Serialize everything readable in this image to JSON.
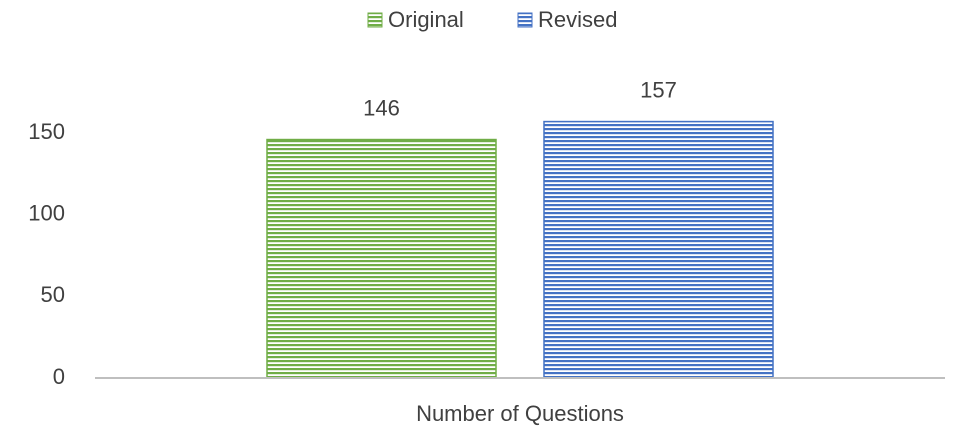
{
  "chart_data": {
    "type": "bar",
    "categories": [
      "Number of Questions"
    ],
    "series": [
      {
        "name": "Original",
        "color": "#70ad47",
        "values": [
          146
        ]
      },
      {
        "name": "Revised",
        "color": "#4472c4",
        "values": [
          157
        ]
      }
    ],
    "ylim": [
      0,
      180
    ],
    "yticks": [
      0,
      50,
      100,
      150
    ],
    "grid": false,
    "legend": "top",
    "data_labels": true
  }
}
